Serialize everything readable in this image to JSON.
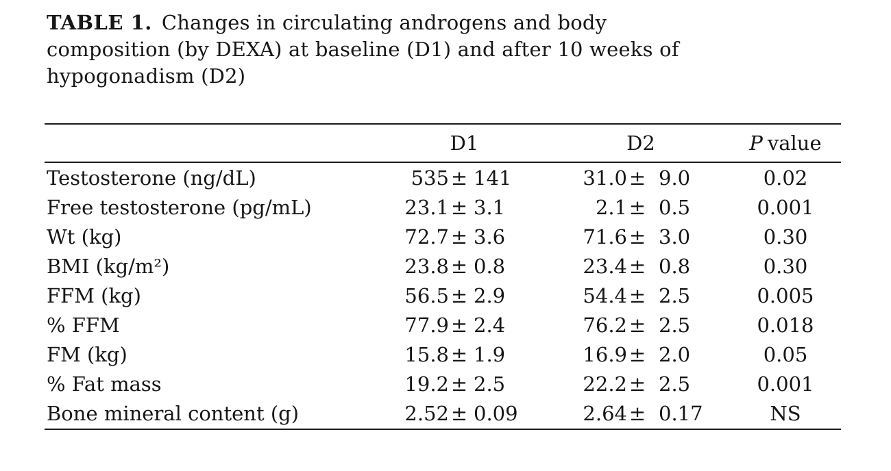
{
  "page": {
    "background_color": "#ffffff",
    "text_color": "#161616",
    "rule_color": "#1c1c1c"
  },
  "title": {
    "label": "TABLE 1.",
    "line1": "Changes in circulating androgens and body",
    "line2": "composition (by DEXA) at baseline (D1) and after 10 weeks of",
    "line3": "hypogonadism (D2)"
  },
  "table": {
    "plus_minus": "±",
    "headers": {
      "d1": "D1",
      "d2": "D2",
      "p_italic": "P",
      "p_rest": "value"
    },
    "rows": [
      {
        "label": "Testosterone (ng/dL)",
        "d1v": "535",
        "d1e": "141",
        "d2v": "31.0",
        "d2e": "9.0",
        "p": "0.02"
      },
      {
        "label": "Free testosterone (pg/mL)",
        "d1v": "23.1",
        "d1e": "3.1",
        "d2v": "2.1",
        "d2e": "0.5",
        "p": "0.001"
      },
      {
        "label": "Wt (kg)",
        "d1v": "72.7",
        "d1e": "3.6",
        "d2v": "71.6",
        "d2e": "3.0",
        "p": "0.30"
      },
      {
        "label": "BMI (kg/m²)",
        "d1v": "23.8",
        "d1e": "0.8",
        "d2v": "23.4",
        "d2e": "0.8",
        "p": "0.30"
      },
      {
        "label": "FFM (kg)",
        "d1v": "56.5",
        "d1e": "2.9",
        "d2v": "54.4",
        "d2e": "2.5",
        "p": "0.005"
      },
      {
        "label": "% FFM",
        "d1v": "77.9",
        "d1e": "2.4",
        "d2v": "76.2",
        "d2e": "2.5",
        "p": "0.018"
      },
      {
        "label": "FM (kg)",
        "d1v": "15.8",
        "d1e": "1.9",
        "d2v": "16.9",
        "d2e": "2.0",
        "p": "0.05"
      },
      {
        "label": "% Fat mass",
        "d1v": "19.2",
        "d1e": "2.5",
        "d2v": "22.2",
        "d2e": "2.5",
        "p": "0.001"
      },
      {
        "label": "Bone mineral content (g)",
        "d1v": "2.52",
        "d1e": "0.09",
        "d2v": "2.64",
        "d2e": "0.17",
        "p": "NS"
      }
    ]
  },
  "chart_data": {
    "type": "table",
    "title": "TABLE 1. Changes in circulating androgens and body composition (by DEXA) at baseline (D1) and after 10 weeks of hypogonadism (D2)",
    "columns": [
      "",
      "D1",
      "D2",
      "P value"
    ],
    "rows": [
      [
        "Testosterone (ng/dL)",
        "535 ± 141",
        "31.0 ± 9.0",
        "0.02"
      ],
      [
        "Free testosterone (pg/mL)",
        "23.1 ± 3.1",
        "2.1 ± 0.5",
        "0.001"
      ],
      [
        "Wt (kg)",
        "72.7 ± 3.6",
        "71.6 ± 3.0",
        "0.30"
      ],
      [
        "BMI (kg/m²)",
        "23.8 ± 0.8",
        "23.4 ± 0.8",
        "0.30"
      ],
      [
        "FFM (kg)",
        "56.5 ± 2.9",
        "54.4 ± 2.5",
        "0.005"
      ],
      [
        "% FFM",
        "77.9 ± 2.4",
        "76.2 ± 2.5",
        "0.018"
      ],
      [
        "FM (kg)",
        "15.8 ± 1.9",
        "16.9 ± 2.0",
        "0.05"
      ],
      [
        "% Fat mass",
        "19.2 ± 2.5",
        "22.2 ± 2.5",
        "0.001"
      ],
      [
        "Bone mineral content (g)",
        "2.52 ± 0.09",
        "2.64 ± 0.17",
        "NS"
      ]
    ]
  }
}
